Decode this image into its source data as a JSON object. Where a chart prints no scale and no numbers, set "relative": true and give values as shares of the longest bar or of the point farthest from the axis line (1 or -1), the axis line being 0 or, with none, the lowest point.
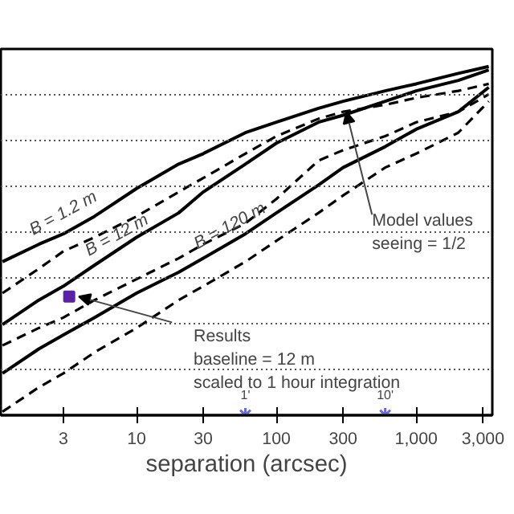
{
  "chart_data": {
    "type": "line",
    "relative": true,
    "log": "x",
    "xlabel": "separation (arcsec)",
    "x": [
      1.1,
      2,
      3,
      5,
      10,
      20,
      30,
      60,
      100,
      200,
      300,
      600,
      1000,
      2000,
      3300
    ],
    "xlim": [
      1.07,
      3500
    ],
    "xticks": [
      3,
      10,
      30,
      100,
      300,
      {
        "value": 1000,
        "label": "1,000"
      },
      {
        "value": 3000,
        "label": "3,000"
      }
    ],
    "grid": "y",
    "legend": false,
    "marker": "none",
    "series": [
      {
        "name": "B = 1.2 m",
        "color": "#000000",
        "line_style": "solid",
        "values": [
          0.44,
          0.49,
          0.52,
          0.57,
          0.65,
          0.72,
          0.75,
          0.81,
          0.84,
          0.88,
          0.9,
          0.93,
          0.95,
          0.98,
          1.0
        ]
      },
      {
        "color": "#000000",
        "line_style": "dashed",
        "values": [
          0.35,
          0.42,
          0.47,
          0.51,
          0.57,
          0.64,
          0.68,
          0.75,
          0.8,
          0.85,
          0.87,
          0.89,
          0.91,
          0.93,
          0.95
        ]
      },
      {
        "name": "B = 12 m",
        "color": "#000000",
        "line_style": "solid",
        "values": [
          0.26,
          0.33,
          0.37,
          0.43,
          0.51,
          0.58,
          0.64,
          0.72,
          0.78,
          0.84,
          0.86,
          0.9,
          0.93,
          0.96,
          0.99
        ]
      },
      {
        "color": "#000000",
        "line_style": "dashed",
        "values": [
          0.2,
          0.25,
          0.28,
          0.33,
          0.39,
          0.45,
          0.49,
          0.55,
          0.62,
          0.73,
          0.76,
          0.8,
          0.84,
          0.87,
          0.92
        ]
      },
      {
        "name": "B = 120 m",
        "color": "#000000",
        "line_style": "solid",
        "values": [
          0.12,
          0.19,
          0.23,
          0.28,
          0.35,
          0.41,
          0.45,
          0.52,
          0.58,
          0.66,
          0.71,
          0.77,
          0.82,
          0.87,
          0.94
        ]
      },
      {
        "color": "#000000",
        "line_style": "dashed",
        "values": [
          0.01,
          0.08,
          0.12,
          0.18,
          0.25,
          0.33,
          0.37,
          0.44,
          0.5,
          0.58,
          0.63,
          0.71,
          0.75,
          0.81,
          0.9
        ]
      },
      {
        "type": "scatter",
        "marker": "square",
        "color": "#5b1fa8",
        "x": [
          3.3
        ],
        "values": [
          0.34
        ]
      },
      {
        "type": "scatter",
        "marker": "cross",
        "color": "#6a6ad8",
        "x": [
          60,
          600
        ],
        "values": [
          0,
          0
        ]
      }
    ],
    "annotations": [
      {
        "text": "Model values\nseeing = 1/2",
        "x": 300,
        "y": 0.87
      },
      "Results\nbaseline = 12 m\nscaled to 1 hour integration",
      {
        "text": "1'",
        "x": 60,
        "y": 0
      },
      {
        "text": "10'",
        "x": 600,
        "y": 0
      }
    ]
  }
}
